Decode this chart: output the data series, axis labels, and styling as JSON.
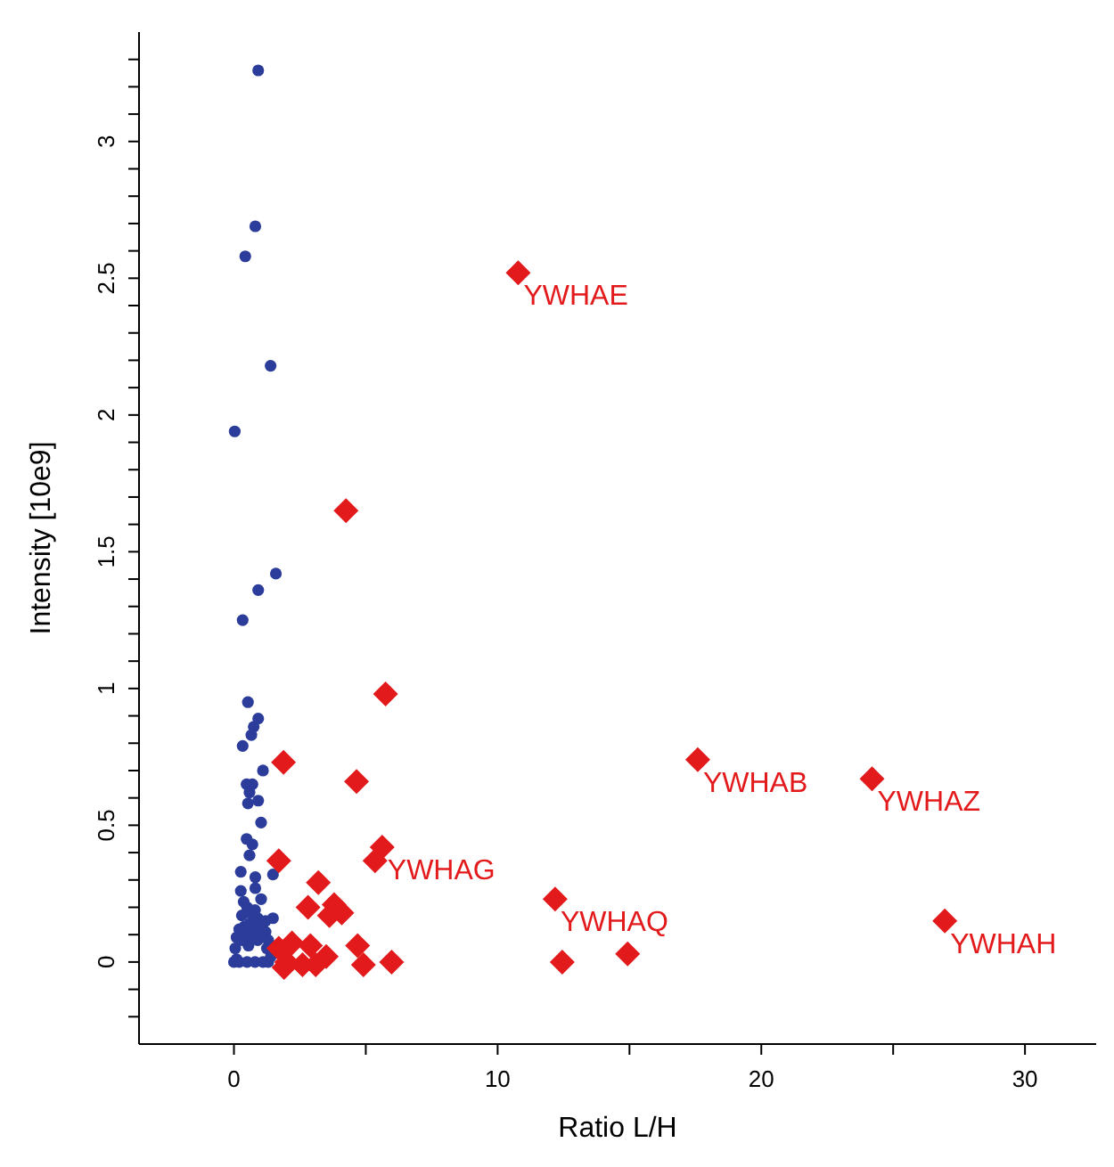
{
  "chart_data": {
    "type": "scatter",
    "xlabel": "Ratio L/H",
    "ylabel": "Intensity [10e9]",
    "xlim": [
      -3.6,
      32.7
    ],
    "ylim": [
      -0.3,
      3.4
    ],
    "xticks": [
      0,
      {
        "value": 5,
        "label": null
      },
      10,
      {
        "value": 15,
        "label": null
      },
      20,
      {
        "value": 25,
        "label": null
      },
      30
    ],
    "yticks": [
      {
        "value": -0.2,
        "label": null
      },
      {
        "value": -0.1,
        "label": null
      },
      0,
      {
        "value": 0.1,
        "label": null
      },
      {
        "value": 0.2,
        "label": null
      },
      {
        "value": 0.3,
        "label": null
      },
      {
        "value": 0.4,
        "label": null
      },
      0.5,
      {
        "value": 0.6,
        "label": null
      },
      {
        "value": 0.7,
        "label": null
      },
      {
        "value": 0.8,
        "label": null
      },
      {
        "value": 0.9,
        "label": null
      },
      1,
      {
        "value": 1.1,
        "label": null
      },
      {
        "value": 1.2,
        "label": null
      },
      {
        "value": 1.3,
        "label": null
      },
      {
        "value": 1.4,
        "label": null
      },
      1.5,
      {
        "value": 1.6,
        "label": null
      },
      {
        "value": 1.7,
        "label": null
      },
      {
        "value": 1.8,
        "label": null
      },
      {
        "value": 1.9,
        "label": null
      },
      2,
      {
        "value": 2.1,
        "label": null
      },
      {
        "value": 2.2,
        "label": null
      },
      {
        "value": 2.3,
        "label": null
      },
      {
        "value": 2.4,
        "label": null
      },
      2.5,
      {
        "value": 2.6,
        "label": null
      },
      {
        "value": 2.7,
        "label": null
      },
      {
        "value": 2.8,
        "label": null
      },
      {
        "value": 2.9,
        "label": null
      },
      3,
      {
        "value": 3.1,
        "label": null
      },
      {
        "value": 3.2,
        "label": null
      },
      {
        "value": 3.3,
        "label": null
      }
    ],
    "grid": false,
    "series": [
      {
        "color": "#2b3c9b",
        "marker": "circle",
        "x": [
          0.92,
          0.81,
          0.43,
          1.39,
          0.03,
          1.59,
          0.92,
          0.33,
          0.53,
          0.92,
          0.75,
          0.66,
          0.33,
          1.1,
          0.48,
          0.7,
          0.59,
          0.92,
          0.53,
          1.03,
          0.48,
          0.7,
          0.59,
          0.26,
          0.81,
          1.48,
          0.26,
          0.81,
          0.37,
          1.03,
          1.48,
          0.0,
          0.1,
          0.2,
          0.5,
          0.8,
          1.1,
          1.3,
          1.4,
          0.05,
          0.55,
          1.25,
          0.1,
          0.3,
          0.5,
          0.7,
          0.9,
          1.1,
          1.3,
          0.2,
          0.4,
          0.6,
          0.8,
          1.0,
          1.2,
          0.3,
          0.6,
          0.9,
          1.2,
          0.5,
          0.8
        ],
        "values": [
          3.26,
          2.69,
          2.58,
          2.18,
          1.94,
          1.42,
          1.36,
          1.25,
          0.95,
          0.89,
          0.86,
          0.83,
          0.79,
          0.7,
          0.65,
          0.65,
          0.62,
          0.59,
          0.58,
          0.51,
          0.45,
          0.43,
          0.39,
          0.33,
          0.31,
          0.32,
          0.26,
          0.27,
          0.22,
          0.23,
          0.16,
          0.0,
          0.01,
          0.0,
          0.0,
          0.0,
          0.0,
          0.0,
          0.02,
          0.05,
          0.06,
          0.05,
          0.09,
          0.08,
          0.1,
          0.09,
          0.08,
          0.1,
          0.08,
          0.12,
          0.13,
          0.14,
          0.12,
          0.13,
          0.11,
          0.17,
          0.18,
          0.16,
          0.15,
          0.2,
          0.19
        ]
      },
      {
        "color": "#e31a1c",
        "marker": "diamond",
        "x": [
          10.78,
          4.25,
          5.75,
          1.88,
          4.65,
          5.62,
          5.35,
          1.7,
          3.2,
          2.81,
          3.8,
          4.09,
          3.62,
          4.69,
          4.91,
          5.98,
          17.59,
          24.2,
          12.18,
          26.96,
          12.45,
          14.93,
          1.7,
          2.0,
          2.6,
          2.9,
          3.5,
          1.9,
          2.2,
          3.1
        ],
        "values": [
          2.52,
          1.65,
          0.98,
          0.73,
          0.66,
          0.42,
          0.37,
          0.37,
          0.29,
          0.2,
          0.21,
          0.18,
          0.17,
          0.06,
          -0.01,
          0.0,
          0.74,
          0.67,
          0.23,
          0.15,
          0.0,
          0.03,
          0.05,
          0.0,
          -0.01,
          0.06,
          0.02,
          -0.02,
          0.07,
          -0.01
        ]
      }
    ],
    "annotations": [
      {
        "text": "YWHAE",
        "x": 10.78,
        "y": 2.52
      },
      {
        "text": "YWHAG",
        "x": 5.62,
        "y": 0.42
      },
      {
        "text": "YWHAB",
        "x": 17.59,
        "y": 0.74
      },
      {
        "text": "YWHAZ",
        "x": 24.2,
        "y": 0.67
      },
      {
        "text": "YWHAQ",
        "x": 12.18,
        "y": 0.23
      },
      {
        "text": "YWHAH",
        "x": 26.96,
        "y": 0.15
      }
    ]
  }
}
